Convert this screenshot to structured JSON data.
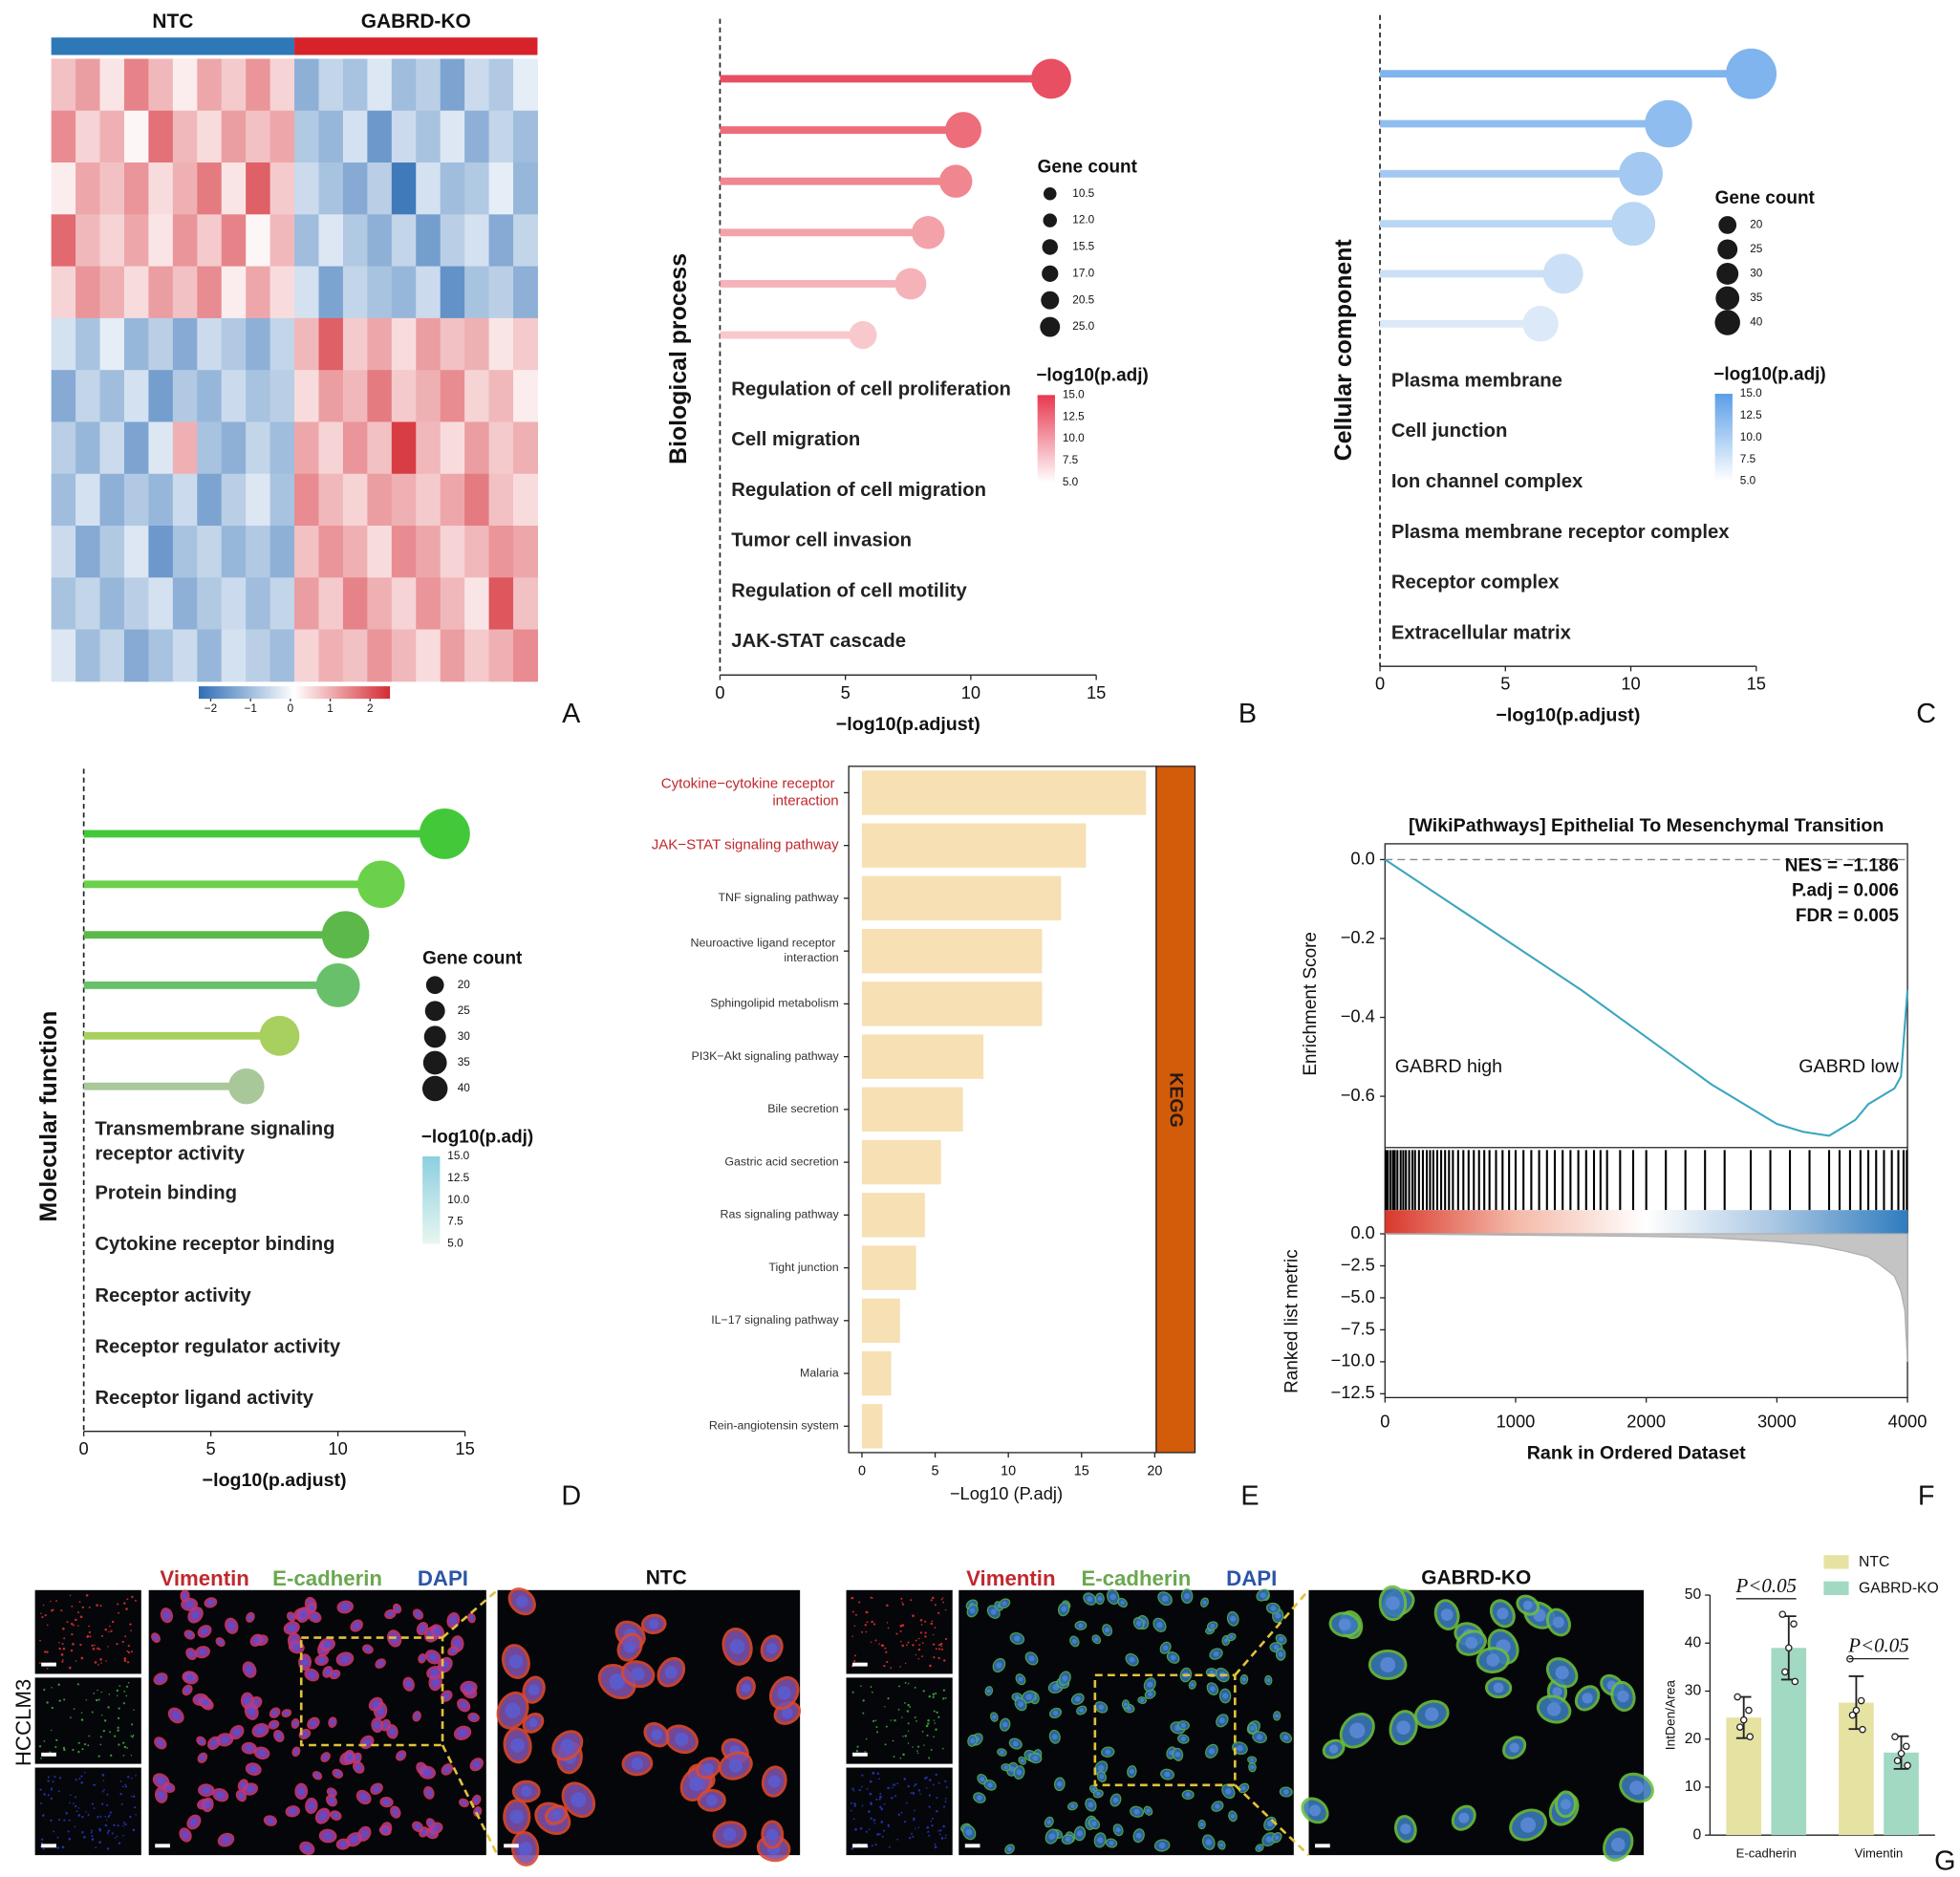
{
  "chart_data": [
    {
      "type": "heatmap",
      "panel_label": "A",
      "groups": [
        {
          "name": "NTC",
          "color": "#2e78b7"
        },
        {
          "name": "GABRD-KO",
          "color": "#d7222a"
        }
      ],
      "colors": [
        "#2f6eb5",
        "#ffffff",
        "#d42b33"
      ],
      "clim": [
        -2.3,
        2.5
      ],
      "cticks": [
        {
          "value": -2,
          "label": "−2"
        },
        {
          "value": -1,
          "label": "−1"
        },
        0,
        1,
        2
      ],
      "values": [
        [
          0.8,
          1.2,
          0.4,
          1.5,
          0.9,
          0.3,
          1.1,
          0.7,
          1.3,
          0.6,
          -1.2,
          -0.6,
          -0.9,
          -0.3,
          -1.0,
          -0.7,
          -1.4,
          -0.5,
          -0.8,
          -0.2
        ],
        [
          1.4,
          0.6,
          1.0,
          0.2,
          1.7,
          0.9,
          0.5,
          1.2,
          0.8,
          1.1,
          -0.8,
          -1.1,
          -0.4,
          -1.6,
          -0.5,
          -0.9,
          -0.3,
          -1.2,
          -0.6,
          -1.0
        ],
        [
          0.3,
          1.1,
          0.8,
          1.3,
          0.5,
          1.0,
          1.6,
          0.4,
          1.9,
          0.7,
          -0.5,
          -0.9,
          -1.3,
          -0.7,
          -2.1,
          -0.4,
          -1.0,
          -0.8,
          -0.2,
          -1.1
        ],
        [
          1.8,
          0.9,
          0.6,
          1.1,
          0.4,
          1.3,
          0.7,
          1.5,
          0.2,
          0.9,
          -1.0,
          -0.3,
          -0.8,
          -1.2,
          -0.6,
          -1.5,
          -0.7,
          -0.4,
          -1.3,
          -0.6
        ],
        [
          0.6,
          1.3,
          1.0,
          0.5,
          1.2,
          0.8,
          1.4,
          0.3,
          1.1,
          0.5,
          -0.4,
          -1.4,
          -0.6,
          -0.9,
          -1.1,
          -0.5,
          -1.7,
          -0.9,
          -0.7,
          -1.2
        ],
        [
          -0.4,
          -0.9,
          -0.2,
          -1.1,
          -0.7,
          -1.3,
          -0.5,
          -0.8,
          -1.2,
          -0.6,
          0.9,
          1.9,
          0.7,
          1.1,
          0.5,
          1.2,
          0.8,
          1.0,
          0.4,
          0.7
        ],
        [
          -1.3,
          -0.6,
          -1.0,
          -0.4,
          -1.5,
          -0.8,
          -1.1,
          -0.5,
          -0.9,
          -0.7,
          0.5,
          1.2,
          0.9,
          1.6,
          0.7,
          1.0,
          1.4,
          0.6,
          0.9,
          0.3
        ],
        [
          -0.7,
          -1.1,
          -0.5,
          -1.4,
          -0.3,
          1.0,
          -0.9,
          -1.2,
          -0.6,
          -1.0,
          1.1,
          0.6,
          1.3,
          0.8,
          2.3,
          0.9,
          0.5,
          1.2,
          0.7,
          1.0
        ],
        [
          -1.0,
          -0.4,
          -1.2,
          -0.8,
          -1.1,
          -0.5,
          -1.4,
          -0.7,
          -0.3,
          -0.9,
          1.4,
          0.9,
          0.6,
          1.2,
          1.0,
          0.7,
          1.1,
          1.6,
          0.8,
          0.5
        ],
        [
          -0.5,
          -1.3,
          -0.8,
          -0.3,
          -1.6,
          -0.9,
          -0.6,
          -1.1,
          -0.8,
          -1.2,
          0.8,
          1.3,
          1.0,
          0.5,
          1.4,
          1.1,
          0.6,
          0.9,
          1.3,
          1.1
        ],
        [
          -0.9,
          -0.6,
          -1.1,
          -0.7,
          -0.4,
          -1.2,
          -0.8,
          -0.5,
          -1.0,
          -0.6,
          1.2,
          0.7,
          1.5,
          1.0,
          0.6,
          1.3,
          0.9,
          0.4,
          2.0,
          0.8
        ],
        [
          -0.3,
          -1.0,
          -0.6,
          -1.3,
          -0.9,
          -0.5,
          -1.1,
          -0.4,
          -0.7,
          -1.0,
          0.6,
          1.0,
          0.8,
          1.3,
          0.9,
          0.5,
          1.2,
          0.7,
          1.0,
          1.4
        ]
      ]
    },
    {
      "type": "lollipop",
      "panel_label": "B",
      "ylabel": "Biological process",
      "xlabel": "−log10(p.adjust)",
      "categories": [
        "Regulation of cell proliferation",
        "Cell migration",
        "Regulation of cell migration",
        "Tumor cell invasion",
        "Regulation of cell motility",
        "JAK-STAT cascade"
      ],
      "values": [
        13.2,
        9.7,
        9.4,
        8.3,
        7.6,
        5.7
      ],
      "sizes": [
        25,
        20.5,
        17,
        17,
        15.5,
        12
      ],
      "colors": [
        "#e94f62",
        "#ed6d7b",
        "#f08690",
        "#f3a2aa",
        "#f5b3b9",
        "#f8c8cc"
      ],
      "xlim": [
        0,
        15
      ],
      "xticks": [
        0,
        5,
        10,
        15
      ],
      "size_legend": {
        "title": "Gene count",
        "values": [
          10.5,
          {
            "value": 12,
            "label": "12.0"
          },
          15.5,
          {
            "value": 17,
            "label": "17.0"
          },
          20.5,
          {
            "value": 25,
            "label": "25.0"
          }
        ]
      },
      "color_legend": {
        "title": "−log10(p.adj)",
        "colors": [
          "#ffffff",
          "#e8384f"
        ],
        "lim": [
          5,
          15
        ],
        "ticks": [
          {
            "value": 15,
            "label": "15.0"
          },
          12.5,
          {
            "value": 10,
            "label": "10.0"
          },
          7.5,
          {
            "value": 5,
            "label": "5.0"
          }
        ]
      }
    },
    {
      "type": "lollipop",
      "panel_label": "C",
      "ylabel": "Cellular component",
      "xlabel": "−log10(p.adjust)",
      "categories": [
        "Plasma membrane",
        "Cell junction",
        "Ion channel complex",
        "Plasma membrane receptor complex",
        "Receptor complex",
        "Extracellular matrix"
      ],
      "values": [
        14.8,
        11.5,
        10.4,
        10.1,
        7.3,
        6.4
      ],
      "sizes": [
        40,
        35,
        30,
        30,
        25,
        20
      ],
      "colors": [
        "#7fb4ee",
        "#8fbdf0",
        "#a3c9f2",
        "#b9d6f4",
        "#cbe0f6",
        "#dbe9f8"
      ],
      "xlim": [
        0,
        15
      ],
      "xticks": [
        0,
        5,
        10,
        15
      ],
      "size_legend": {
        "title": "Gene count",
        "values": [
          20,
          25,
          30,
          35,
          40
        ]
      },
      "color_legend": {
        "title": "−log10(p.adj)",
        "colors": [
          "#ffffff",
          "#5a9ee8"
        ],
        "lim": [
          5,
          15
        ],
        "ticks": [
          {
            "value": 15,
            "label": "15.0"
          },
          12.5,
          {
            "value": 10,
            "label": "10.0"
          },
          7.5,
          {
            "value": 5,
            "label": "5.0"
          }
        ]
      }
    },
    {
      "type": "lollipop",
      "panel_label": "D",
      "ylabel": "Molecular function",
      "xlabel": "−log10(p.adjust)",
      "categories": [
        "Transmembrane signaling receptor activity",
        "Protein binding",
        "Cytokine receptor binding",
        "Receptor activity",
        "Receptor regulator activity",
        "Receptor ligand activity"
      ],
      "values": [
        14.2,
        11.7,
        10.3,
        10.0,
        7.7,
        6.4
      ],
      "sizes": [
        40,
        35,
        35,
        30,
        25,
        20
      ],
      "colors": [
        "#43c83a",
        "#6bd14a",
        "#5cb84a",
        "#69c06a",
        "#a8d05e",
        "#a8c89a"
      ],
      "xlim": [
        0,
        15
      ],
      "xticks": [
        0,
        5,
        10,
        15
      ],
      "size_legend": {
        "title": "Gene count",
        "values": [
          20,
          25,
          30,
          35,
          40
        ]
      },
      "color_legend": {
        "title": "−log10(p.adj)",
        "colors": [
          "#e8f6f0",
          "#8ccfe0"
        ],
        "lim": [
          5,
          15
        ],
        "ticks": [
          {
            "value": 15,
            "label": "15.0"
          },
          12.5,
          {
            "value": 10,
            "label": "10.0"
          },
          7.5,
          {
            "value": 5,
            "label": "5.0"
          }
        ]
      }
    },
    {
      "type": "hbar",
      "panel_label": "E",
      "xlabel": "−Log10 (P.adj)",
      "categories": [
        "Cytokine−cytokine receptor interaction",
        "JAK−STAT signaling pathway",
        "TNF signaling pathway",
        "Neuroactive ligand receptor interaction",
        "Sphingolipid metabolism",
        "PI3K−Akt signaling pathway",
        "Bile secretion",
        "Gastric acid secretion",
        "Ras signaling pathway",
        "Tight junction",
        "IL−17 signaling pathway",
        "Malaria",
        "Rein-angiotensin system"
      ],
      "values": [
        19.4,
        15.3,
        13.6,
        12.3,
        12.3,
        8.3,
        6.9,
        5.4,
        4.3,
        3.7,
        2.6,
        2.0,
        1.4
      ],
      "label_colors": [
        "#c0282d",
        "#c0282d",
        "#333333",
        "#333333",
        "#333333",
        "#333333",
        "#333333",
        "#333333",
        "#333333",
        "#333333",
        "#333333",
        "#333333",
        "#333333"
      ],
      "color": "#f6e0b4",
      "xlim": [
        -0.9,
        20.1
      ],
      "xticks": [
        0,
        5,
        10,
        15,
        20
      ],
      "strip_label": "KEGG",
      "strip_color": "#d35c0b"
    },
    {
      "type": "gsea",
      "panel_label": "F",
      "title": "[WikiPathways] Epithelial To Mesenchymal Transition",
      "ylabel": "Enrichment Score",
      "xlabel": "Rank in Ordered Dataset",
      "metric_ylabel": "Ranked list metric",
      "stats": [
        "NES = −1.186",
        "P.adj = 0.006",
        "FDR = 0.005"
      ],
      "labels": [
        "GABRD high",
        "GABRD low"
      ],
      "line_color": "#3aa6bf",
      "x": [
        0,
        500,
        1000,
        1500,
        2000,
        2500,
        2800,
        3000,
        3200,
        3400,
        3500,
        3600,
        3700,
        3800,
        3900,
        3950,
        4000
      ],
      "values": [
        0,
        -0.11,
        -0.22,
        -0.33,
        -0.45,
        -0.57,
        -0.63,
        -0.67,
        -0.69,
        -0.7,
        -0.68,
        -0.66,
        -0.62,
        -0.6,
        -0.58,
        -0.55,
        -0.33
      ],
      "hits": [
        5,
        20,
        40,
        60,
        75,
        95,
        120,
        140,
        160,
        185,
        210,
        230,
        260,
        290,
        320,
        345,
        370,
        400,
        430,
        460,
        490,
        520,
        560,
        600,
        640,
        680,
        720,
        760,
        800,
        850,
        900,
        950,
        1000,
        1060,
        1120,
        1180,
        1240,
        1300,
        1360,
        1420,
        1480,
        1540,
        1600,
        1650,
        1700,
        1800,
        1900,
        2000,
        2150,
        2300,
        2450,
        2600,
        2800,
        2950,
        3100,
        3250,
        3400,
        3480,
        3560,
        3640,
        3700,
        3760,
        3820,
        3880,
        3930,
        3970,
        3995
      ],
      "metric_x": [
        0,
        500,
        1000,
        1500,
        2000,
        2500,
        3000,
        3300,
        3500,
        3700,
        3800,
        3900,
        3950,
        3980,
        4000
      ],
      "metric_values": [
        0,
        -0.05,
        -0.1,
        -0.15,
        -0.2,
        -0.3,
        -0.6,
        -0.9,
        -1.3,
        -1.8,
        -2.5,
        -3.3,
        -4.5,
        -6,
        -10
      ],
      "xlim": [
        0,
        4000
      ],
      "xticks": [
        0,
        1000,
        2000,
        3000,
        4000
      ],
      "ylim": [
        -0.73,
        0.04
      ],
      "yticks": [
        {
          "value": 0,
          "label": "0.0"
        },
        {
          "value": -0.2,
          "label": "−0.2"
        },
        {
          "value": -0.4,
          "label": "−0.4"
        },
        {
          "value": -0.6,
          "label": "−0.6"
        }
      ],
      "metric_ylim": [
        -12.8,
        0
      ],
      "metric_yticks": [
        {
          "value": 0,
          "label": "0.0"
        },
        {
          "value": -2.5,
          "label": "−2.5"
        },
        {
          "value": -5,
          "label": "−5.0"
        },
        {
          "value": -7.5,
          "label": "−7.5"
        },
        {
          "value": -10,
          "label": "−10.0"
        },
        {
          "value": -12.5,
          "label": "−12.5"
        }
      ]
    },
    {
      "type": "bar_scatter",
      "panel_label": "G",
      "ylabel": "IntDen/Area",
      "categories": [
        "E-cadherin",
        "Vimentin"
      ],
      "series": [
        {
          "name": "NTC",
          "color": "#e6e3a2",
          "values": [
            24.5,
            27.6
          ],
          "errors": [
            4.3,
            5.5
          ],
          "points": [
            [
              28.8,
              26,
              24,
              22.5,
              20.5
            ],
            [
              36.7,
              28,
              26,
              25,
              22
            ]
          ]
        },
        {
          "name": "GABRD-KO",
          "color": "#a1d9c3",
          "values": [
            39,
            17.2
          ],
          "errors": [
            6.6,
            3.4
          ],
          "points": [
            [
              46,
              44,
              39,
              34,
              32
            ],
            [
              20.5,
              18.5,
              17,
              15.5,
              14.5
            ]
          ]
        }
      ],
      "annotations": [
        "P<0.05",
        "P<0.05"
      ],
      "ylim": [
        0,
        50
      ],
      "yticks": [
        0,
        10,
        20,
        30,
        40,
        50
      ]
    }
  ],
  "micrographs": {
    "row_label": "HCCLM3",
    "panels": [
      {
        "stains": [
          "Vimentin",
          "E-cadherin",
          "DAPI"
        ],
        "title": "NTC"
      },
      {
        "stains": [
          "Vimentin",
          "E-cadherin",
          "DAPI"
        ],
        "title": "GABRD-KO"
      }
    ]
  }
}
